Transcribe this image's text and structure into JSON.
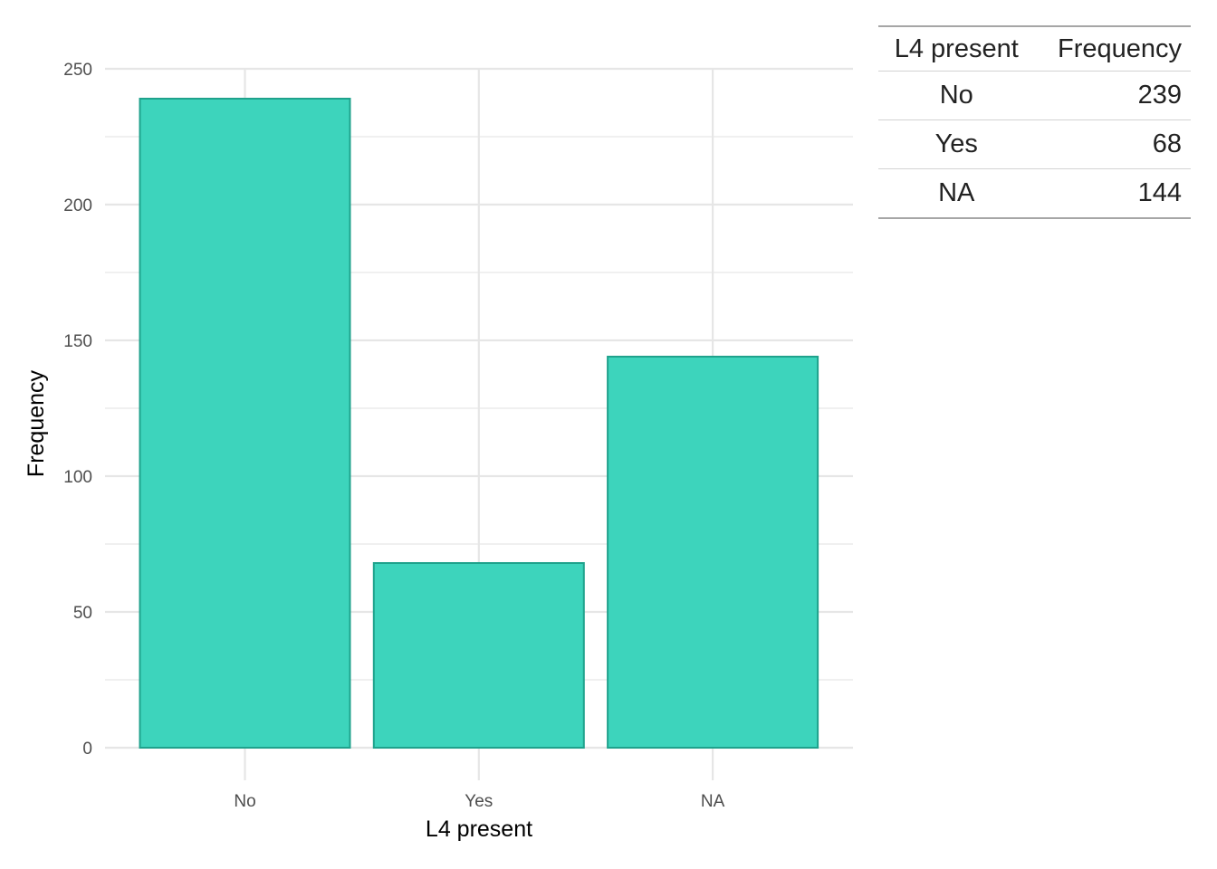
{
  "chart_data": {
    "type": "bar",
    "categories": [
      "No",
      "Yes",
      "NA"
    ],
    "values": [
      239,
      68,
      144
    ],
    "title": "",
    "xlabel": "L4 present",
    "ylabel": "Frequency",
    "ylim": [
      0,
      250
    ],
    "yticks": [
      0,
      50,
      100,
      150,
      200,
      250
    ],
    "grid": true,
    "legend": "none",
    "colors": {
      "bar_fill": "#3dd4bc",
      "bar_stroke": "#1fa28c",
      "grid": "#e6e6e6"
    }
  },
  "table": {
    "headers": [
      "L4 present",
      "Frequency"
    ],
    "rows": [
      {
        "label": "No",
        "value": "239"
      },
      {
        "label": "Yes",
        "value": "68"
      },
      {
        "label": "NA",
        "value": "144"
      }
    ]
  }
}
